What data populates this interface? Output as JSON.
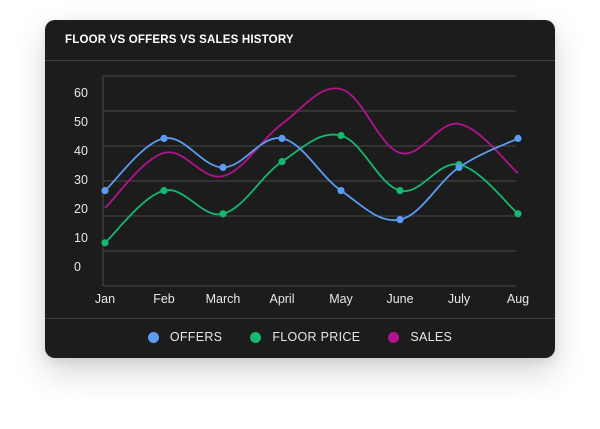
{
  "chart_data": {
    "type": "line",
    "title": "FLOOR VS OFFERS VS SALES HISTORY",
    "categories": [
      "Jan",
      "Feb",
      "March",
      "April",
      "May",
      "June",
      "July",
      "Aug"
    ],
    "y_ticks": [
      "0",
      "10",
      "20",
      "30",
      "40",
      "50",
      "60"
    ],
    "ylim": [
      0,
      65
    ],
    "grid": true,
    "legend_position": "bottom-center",
    "series": [
      {
        "name": "OFFERS",
        "color": "#5b9cf2",
        "values": [
          26,
          44,
          34,
          44,
          26,
          16,
          34,
          44
        ],
        "markers": true
      },
      {
        "name": "FLOOR PRICE",
        "color": "#14b86e",
        "values": [
          8,
          26,
          18,
          36,
          45,
          26,
          35,
          18
        ],
        "markers": true
      },
      {
        "name": "SALES",
        "color": "#b3128f",
        "values": [
          20,
          39,
          31,
          49,
          61,
          39,
          49,
          32
        ],
        "markers": false
      }
    ]
  }
}
